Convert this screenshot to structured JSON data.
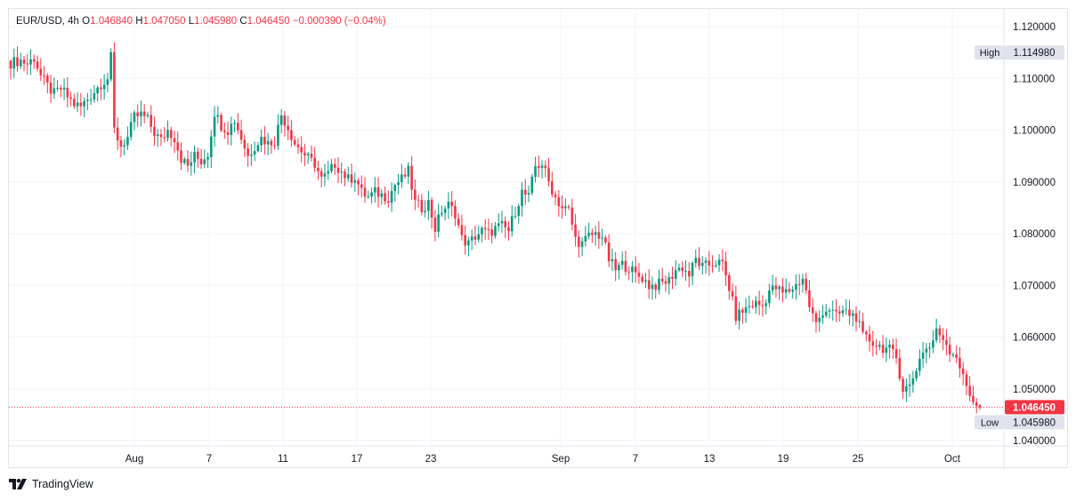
{
  "legend": {
    "symbol": "EUR/USD",
    "interval": "4h",
    "open_key": "O",
    "open": "1.046840",
    "high_key": "H",
    "high": "1.047050",
    "low_key": "L",
    "low": "1.045980",
    "close_key": "C",
    "close": "1.046450",
    "change": "−0.000390",
    "change_pct": "(−0.04%)"
  },
  "branding": {
    "name": "TradingView"
  },
  "colors": {
    "up": "#089981",
    "down": "#f23645",
    "grid": "#f0f3fa",
    "axis_text": "#131722",
    "badge_bg": "#e0e3eb"
  },
  "chart_data": {
    "type": "candlestick",
    "ylim": [
      1.04,
      1.12
    ],
    "y_ticks": [
      "1.120000",
      "1.110000",
      "1.100000",
      "1.090000",
      "1.080000",
      "1.070000",
      "1.060000",
      "1.050000",
      "1.040000"
    ],
    "x_ticks": [
      "Aug",
      "7",
      "11",
      "17",
      "23",
      "Sep",
      "7",
      "13",
      "19",
      "25",
      "Oct"
    ],
    "high_marker": {
      "label": "High",
      "value": "1.114980"
    },
    "low_marker": {
      "label": "Low",
      "value": "1.045980"
    },
    "last_price": {
      "value": "1.046450"
    },
    "series": [
      {
        "x": 0,
        "close": 1.113
      },
      {
        "x": 3,
        "close": 1.1135
      },
      {
        "x": 5,
        "close": 1.1128
      },
      {
        "x": 7,
        "close": 1.114
      },
      {
        "x": 9,
        "close": 1.1105
      },
      {
        "x": 11,
        "close": 1.1085
      },
      {
        "x": 13,
        "close": 1.107
      },
      {
        "x": 15,
        "close": 1.108
      },
      {
        "x": 17,
        "close": 1.1065
      },
      {
        "x": 19,
        "close": 1.105
      },
      {
        "x": 21,
        "close": 1.1045
      },
      {
        "x": 23,
        "close": 1.106
      },
      {
        "x": 25,
        "close": 1.1075
      },
      {
        "x": 27,
        "close": 1.109
      },
      {
        "x": 29,
        "close": 1.11
      },
      {
        "x": 30,
        "close": 1.114
      },
      {
        "x": 31,
        "close": 1.1
      },
      {
        "x": 33,
        "close": 1.097
      },
      {
        "x": 35,
        "close": 1.0985
      },
      {
        "x": 37,
        "close": 1.1025
      },
      {
        "x": 39,
        "close": 1.103
      },
      {
        "x": 41,
        "close": 1.102
      },
      {
        "x": 43,
        "close": 1.0995
      },
      {
        "x": 45,
        "close": 1.098
      },
      {
        "x": 47,
        "close": 1.1
      },
      {
        "x": 49,
        "close": 1.0985
      },
      {
        "x": 51,
        "close": 1.0945
      },
      {
        "x": 53,
        "close": 1.093
      },
      {
        "x": 55,
        "close": 1.095
      },
      {
        "x": 57,
        "close": 1.094
      },
      {
        "x": 59,
        "close": 1.0955
      },
      {
        "x": 61,
        "close": 1.1035
      },
      {
        "x": 63,
        "close": 1.101
      },
      {
        "x": 65,
        "close": 1.1
      },
      {
        "x": 67,
        "close": 1.102
      },
      {
        "x": 69,
        "close": 1.0985
      },
      {
        "x": 71,
        "close": 1.095
      },
      {
        "x": 73,
        "close": 1.097
      },
      {
        "x": 75,
        "close": 1.0985
      },
      {
        "x": 77,
        "close": 1.0975
      },
      {
        "x": 79,
        "close": 1.098
      },
      {
        "x": 81,
        "close": 1.103
      },
      {
        "x": 83,
        "close": 1.1005
      },
      {
        "x": 85,
        "close": 1.0975
      },
      {
        "x": 87,
        "close": 1.096
      },
      {
        "x": 89,
        "close": 1.0945
      },
      {
        "x": 91,
        "close": 1.0935
      },
      {
        "x": 93,
        "close": 1.0905
      },
      {
        "x": 95,
        "close": 1.0915
      },
      {
        "x": 97,
        "close": 1.0935
      },
      {
        "x": 99,
        "close": 1.092
      },
      {
        "x": 101,
        "close": 1.0905
      },
      {
        "x": 103,
        "close": 1.091
      },
      {
        "x": 105,
        "close": 1.088
      },
      {
        "x": 107,
        "close": 1.087
      },
      {
        "x": 109,
        "close": 1.088
      },
      {
        "x": 111,
        "close": 1.0875
      },
      {
        "x": 113,
        "close": 1.087
      },
      {
        "x": 115,
        "close": 1.0895
      },
      {
        "x": 117,
        "close": 1.0905
      },
      {
        "x": 119,
        "close": 1.092
      },
      {
        "x": 121,
        "close": 1.086
      },
      {
        "x": 123,
        "close": 1.085
      },
      {
        "x": 125,
        "close": 1.086
      },
      {
        "x": 127,
        "close": 1.081
      },
      {
        "x": 129,
        "close": 1.0845
      },
      {
        "x": 131,
        "close": 1.0855
      },
      {
        "x": 133,
        "close": 1.084
      },
      {
        "x": 135,
        "close": 1.079
      },
      {
        "x": 137,
        "close": 1.078
      },
      {
        "x": 139,
        "close": 1.0795
      },
      {
        "x": 141,
        "close": 1.0805
      },
      {
        "x": 143,
        "close": 1.08
      },
      {
        "x": 145,
        "close": 1.081
      },
      {
        "x": 147,
        "close": 1.0815
      },
      {
        "x": 149,
        "close": 1.0805
      },
      {
        "x": 151,
        "close": 1.0845
      },
      {
        "x": 153,
        "close": 1.088
      },
      {
        "x": 155,
        "close": 1.087
      },
      {
        "x": 157,
        "close": 1.093
      },
      {
        "x": 159,
        "close": 1.0935
      },
      {
        "x": 161,
        "close": 1.09
      },
      {
        "x": 163,
        "close": 1.087
      },
      {
        "x": 165,
        "close": 1.085
      },
      {
        "x": 167,
        "close": 1.0845
      },
      {
        "x": 169,
        "close": 1.079
      },
      {
        "x": 171,
        "close": 1.078
      },
      {
        "x": 173,
        "close": 1.0795
      },
      {
        "x": 175,
        "close": 1.08
      },
      {
        "x": 177,
        "close": 1.0795
      },
      {
        "x": 179,
        "close": 1.075
      },
      {
        "x": 181,
        "close": 1.073
      },
      {
        "x": 183,
        "close": 1.074
      },
      {
        "x": 185,
        "close": 1.0735
      },
      {
        "x": 187,
        "close": 1.072
      },
      {
        "x": 189,
        "close": 1.0715
      },
      {
        "x": 191,
        "close": 1.07
      },
      {
        "x": 193,
        "close": 1.07
      },
      {
        "x": 195,
        "close": 1.0705
      },
      {
        "x": 197,
        "close": 1.071
      },
      {
        "x": 199,
        "close": 1.073
      },
      {
        "x": 201,
        "close": 1.0735
      },
      {
        "x": 203,
        "close": 1.072
      },
      {
        "x": 205,
        "close": 1.075
      },
      {
        "x": 207,
        "close": 1.0735
      },
      {
        "x": 209,
        "close": 1.074
      },
      {
        "x": 211,
        "close": 1.0745
      },
      {
        "x": 213,
        "close": 1.074
      },
      {
        "x": 215,
        "close": 1.0695
      },
      {
        "x": 217,
        "close": 1.064
      },
      {
        "x": 219,
        "close": 1.065
      },
      {
        "x": 221,
        "close": 1.066
      },
      {
        "x": 223,
        "close": 1.0665
      },
      {
        "x": 225,
        "close": 1.066
      },
      {
        "x": 227,
        "close": 1.069
      },
      {
        "x": 229,
        "close": 1.0695
      },
      {
        "x": 231,
        "close": 1.0685
      },
      {
        "x": 233,
        "close": 1.069
      },
      {
        "x": 235,
        "close": 1.07
      },
      {
        "x": 237,
        "close": 1.0715
      },
      {
        "x": 239,
        "close": 1.066
      },
      {
        "x": 241,
        "close": 1.0625
      },
      {
        "x": 243,
        "close": 1.065
      },
      {
        "x": 245,
        "close": 1.0655
      },
      {
        "x": 247,
        "close": 1.064
      },
      {
        "x": 249,
        "close": 1.065
      },
      {
        "x": 251,
        "close": 1.0645
      },
      {
        "x": 253,
        "close": 1.064
      },
      {
        "x": 255,
        "close": 1.06
      },
      {
        "x": 257,
        "close": 1.0595
      },
      {
        "x": 259,
        "close": 1.0585
      },
      {
        "x": 261,
        "close": 1.058
      },
      {
        "x": 263,
        "close": 1.0575
      },
      {
        "x": 265,
        "close": 1.056
      },
      {
        "x": 267,
        "close": 1.05
      },
      {
        "x": 269,
        "close": 1.0505
      },
      {
        "x": 271,
        "close": 1.054
      },
      {
        "x": 273,
        "close": 1.0575
      },
      {
        "x": 275,
        "close": 1.058
      },
      {
        "x": 277,
        "close": 1.061
      },
      {
        "x": 279,
        "close": 1.06
      },
      {
        "x": 281,
        "close": 1.0575
      },
      {
        "x": 283,
        "close": 1.0565
      },
      {
        "x": 285,
        "close": 1.052
      },
      {
        "x": 287,
        "close": 1.049
      },
      {
        "x": 289,
        "close": 1.047
      },
      {
        "x": 290,
        "close": 1.04645
      }
    ]
  }
}
